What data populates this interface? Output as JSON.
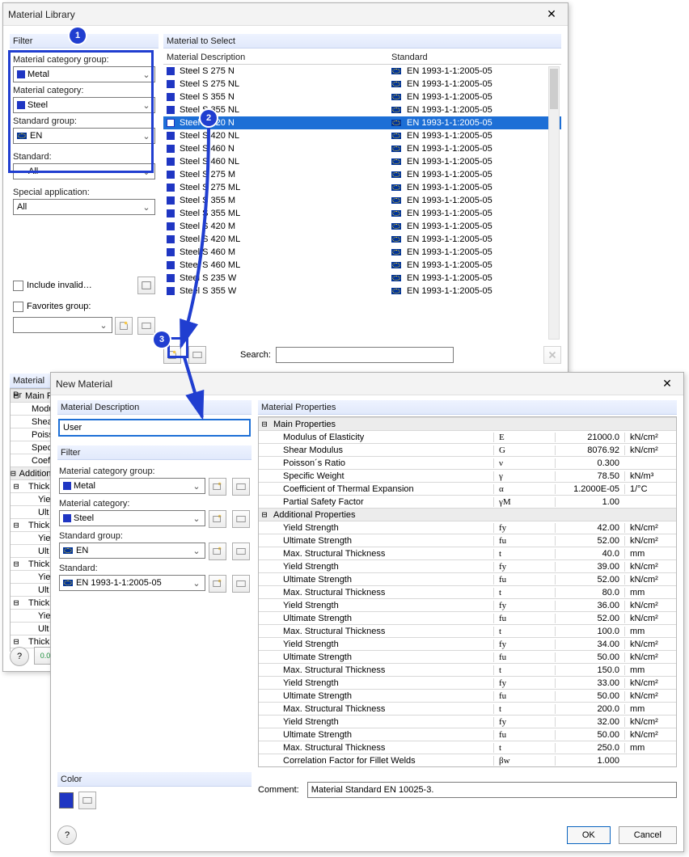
{
  "matlib": {
    "title": "Material Library",
    "filter_label": "Filter",
    "material_to_select_label": "Material to Select",
    "col_desc": "Material Description",
    "col_std": "Standard",
    "filters": {
      "group_label": "Material category group:",
      "group_value": "Metal",
      "cat_label": "Material category:",
      "cat_value": "Steel",
      "stdgroup_label": "Standard group:",
      "stdgroup_value": "EN",
      "standard_label": "Standard:",
      "standard_value": "All",
      "special_label": "Special application:",
      "special_value": "All",
      "include_invalid": "Include invalid…",
      "favorites_label": "Favorites group:"
    },
    "search_label": "Search:",
    "materials": [
      {
        "desc": "Steel S 275 N",
        "std": "EN 1993-1-1:2005-05"
      },
      {
        "desc": "Steel S 275 NL",
        "std": "EN 1993-1-1:2005-05"
      },
      {
        "desc": "Steel S 355 N",
        "std": "EN 1993-1-1:2005-05"
      },
      {
        "desc": "Steel S 355 NL",
        "std": "EN 1993-1-1:2005-05"
      },
      {
        "desc": "Steel S 420 N",
        "std": "EN 1993-1-1:2005-05",
        "selected": true
      },
      {
        "desc": "Steel S 420 NL",
        "std": "EN 1993-1-1:2005-05"
      },
      {
        "desc": "Steel S 460 N",
        "std": "EN 1993-1-1:2005-05"
      },
      {
        "desc": "Steel S 460 NL",
        "std": "EN 1993-1-1:2005-05"
      },
      {
        "desc": "Steel S 275 M",
        "std": "EN 1993-1-1:2005-05"
      },
      {
        "desc": "Steel S 275 ML",
        "std": "EN 1993-1-1:2005-05"
      },
      {
        "desc": "Steel S 355 M",
        "std": "EN 1993-1-1:2005-05"
      },
      {
        "desc": "Steel S 355 ML",
        "std": "EN 1993-1-1:2005-05"
      },
      {
        "desc": "Steel S 420 M",
        "std": "EN 1993-1-1:2005-05"
      },
      {
        "desc": "Steel S 420 ML",
        "std": "EN 1993-1-1:2005-05"
      },
      {
        "desc": "Steel S 460 M",
        "std": "EN 1993-1-1:2005-05"
      },
      {
        "desc": "Steel S 460 ML",
        "std": "EN 1993-1-1:2005-05"
      },
      {
        "desc": "Steel S 235 W",
        "std": "EN 1993-1-1:2005-05"
      },
      {
        "desc": "Steel S 355 W",
        "std": "EN 1993-1-1:2005-05"
      }
    ],
    "matprops_label": "Material Pr",
    "left_tree": {
      "main": "Main Pr",
      "rows": [
        "Modu",
        "Shea",
        "Poiss",
        "Spec",
        "Coeff"
      ],
      "addl": "Additional",
      "thick_label": "Thick",
      "ult_label": "Ult",
      "yie_label": "Yie"
    },
    "colors": {
      "metal_swatch": "#1f36c3",
      "steel_swatch": "#1f36c3",
      "selection": "#1d6fd6",
      "annot": "#203ed0"
    }
  },
  "newmat": {
    "title": "New Material",
    "desc_label": "Material Description",
    "desc_value": "User",
    "filter_label": "Filter",
    "group_label": "Material category group:",
    "group_value": "Metal",
    "cat_label": "Material category:",
    "cat_value": "Steel",
    "stdgroup_label": "Standard group:",
    "stdgroup_value": "EN",
    "standard_label": "Standard:",
    "standard_value": "EN 1993-1-1:2005-05",
    "color_label": "Color",
    "color_value": "#1f36c3",
    "props_label": "Material Properties",
    "main_section": "Main Properties",
    "addl_section": "Additional Properties",
    "props_main": [
      {
        "name": "Modulus of Elasticity",
        "sym": "E",
        "val": "21000.0",
        "unit": "kN/cm²"
      },
      {
        "name": "Shear Modulus",
        "sym": "G",
        "val": "8076.92",
        "unit": "kN/cm²"
      },
      {
        "name": "Poisson´s Ratio",
        "sym": "ν",
        "val": "0.300",
        "unit": ""
      },
      {
        "name": "Specific Weight",
        "sym": "γ",
        "val": "78.50",
        "unit": "kN/m³"
      },
      {
        "name": "Coefficient of Thermal Expansion",
        "sym": "α",
        "val": "1.2000E-05",
        "unit": "1/°C"
      },
      {
        "name": "Partial Safety Factor",
        "sym": "γM",
        "val": "1.00",
        "unit": ""
      }
    ],
    "props_addl": [
      {
        "name": "Yield Strength",
        "sym": "fy",
        "val": "42.00",
        "unit": "kN/cm²"
      },
      {
        "name": "Ultimate Strength",
        "sym": "fu",
        "val": "52.00",
        "unit": "kN/cm²"
      },
      {
        "name": "Max. Structural Thickness",
        "sym": "t",
        "val": "40.0",
        "unit": "mm"
      },
      {
        "name": "Yield Strength",
        "sym": "fy",
        "val": "39.00",
        "unit": "kN/cm²"
      },
      {
        "name": "Ultimate Strength",
        "sym": "fu",
        "val": "52.00",
        "unit": "kN/cm²"
      },
      {
        "name": "Max. Structural Thickness",
        "sym": "t",
        "val": "80.0",
        "unit": "mm"
      },
      {
        "name": "Yield Strength",
        "sym": "fy",
        "val": "36.00",
        "unit": "kN/cm²"
      },
      {
        "name": "Ultimate Strength",
        "sym": "fu",
        "val": "52.00",
        "unit": "kN/cm²"
      },
      {
        "name": "Max. Structural Thickness",
        "sym": "t",
        "val": "100.0",
        "unit": "mm"
      },
      {
        "name": "Yield Strength",
        "sym": "fy",
        "val": "34.00",
        "unit": "kN/cm²"
      },
      {
        "name": "Ultimate Strength",
        "sym": "fu",
        "val": "50.00",
        "unit": "kN/cm²"
      },
      {
        "name": "Max. Structural Thickness",
        "sym": "t",
        "val": "150.0",
        "unit": "mm"
      },
      {
        "name": "Yield Strength",
        "sym": "fy",
        "val": "33.00",
        "unit": "kN/cm²"
      },
      {
        "name": "Ultimate Strength",
        "sym": "fu",
        "val": "50.00",
        "unit": "kN/cm²"
      },
      {
        "name": "Max. Structural Thickness",
        "sym": "t",
        "val": "200.0",
        "unit": "mm"
      },
      {
        "name": "Yield Strength",
        "sym": "fy",
        "val": "32.00",
        "unit": "kN/cm²"
      },
      {
        "name": "Ultimate Strength",
        "sym": "fu",
        "val": "50.00",
        "unit": "kN/cm²"
      },
      {
        "name": "Max. Structural Thickness",
        "sym": "t",
        "val": "250.0",
        "unit": "mm"
      },
      {
        "name": "Correlation Factor for Fillet Welds",
        "sym": "βw",
        "val": "1.000",
        "unit": ""
      }
    ],
    "comment_label": "Comment:",
    "comment_value": "Material Standard EN 10025-3.",
    "ok": "OK",
    "cancel": "Cancel"
  },
  "badges": {
    "b1": "1",
    "b2": "2",
    "b3": "3"
  }
}
